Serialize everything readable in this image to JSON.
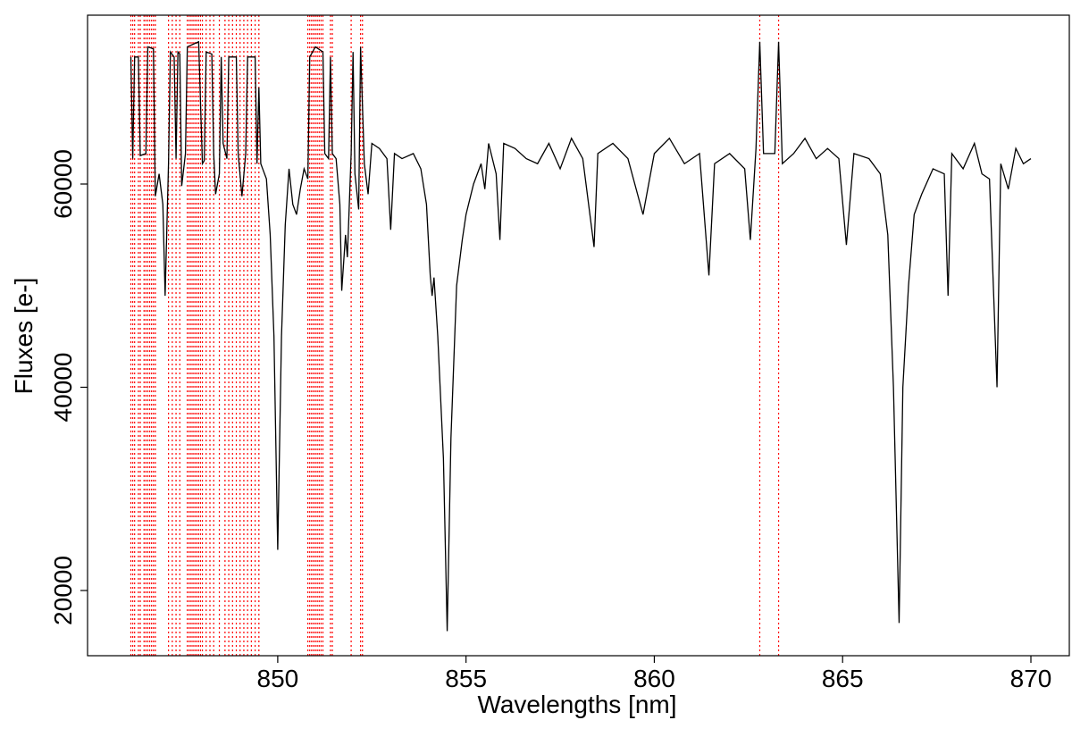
{
  "chart_data": {
    "type": "line",
    "x_label": "Wavelengths [nm]",
    "y_label": "Fluxes [e-]",
    "xlim": [
      844.95,
      871.02
    ],
    "ylim": [
      13583,
      76615
    ],
    "xticks": [
      850,
      855,
      860,
      865,
      870
    ],
    "yticks": [
      20000,
      40000,
      60000
    ],
    "color": "#000000",
    "mask_color": "#ff0000",
    "masked_wavelengths": [
      846.1,
      846.15,
      846.2,
      846.3,
      846.35,
      846.45,
      846.5,
      846.55,
      846.6,
      846.65,
      846.7,
      846.75,
      847.1,
      847.2,
      847.3,
      847.4,
      847.6,
      847.65,
      847.7,
      847.75,
      847.8,
      847.85,
      847.9,
      847.95,
      848.0,
      848.1,
      848.2,
      848.3,
      848.45,
      848.6,
      848.7,
      848.8,
      848.9,
      849.0,
      849.1,
      849.2,
      849.3,
      849.4,
      849.5,
      850.8,
      850.85,
      850.9,
      850.95,
      851.0,
      851.05,
      851.1,
      851.15,
      851.2,
      851.4,
      851.45,
      851.95,
      852.2,
      852.25,
      862.8,
      863.3
    ],
    "x": [
      846.1,
      846.15,
      846.2,
      846.3,
      846.35,
      846.5,
      846.55,
      846.7,
      846.75,
      846.85,
      846.95,
      847.01,
      847.1,
      847.15,
      847.25,
      847.3,
      847.35,
      847.4,
      847.45,
      847.55,
      847.6,
      847.9,
      848.0,
      848.05,
      848.1,
      848.25,
      848.3,
      848.35,
      848.45,
      848.5,
      848.55,
      848.65,
      848.7,
      848.9,
      848.95,
      849.05,
      849.15,
      849.2,
      849.4,
      849.45,
      849.5,
      849.55,
      849.6,
      849.7,
      849.8,
      849.9,
      850.0,
      850.1,
      850.2,
      850.3,
      850.4,
      850.5,
      850.6,
      850.7,
      850.8,
      850.85,
      851.0,
      851.2,
      851.25,
      851.35,
      851.4,
      851.45,
      851.55,
      851.65,
      851.7,
      851.8,
      851.85,
      851.95,
      852.0,
      852.05,
      852.15,
      852.2,
      852.3,
      852.4,
      852.5,
      852.7,
      852.9,
      853.0,
      853.1,
      853.3,
      853.6,
      853.8,
      853.95,
      854.05,
      854.1,
      854.15,
      854.25,
      854.4,
      854.5,
      854.6,
      854.75,
      854.9,
      855.0,
      855.2,
      855.4,
      855.5,
      855.6,
      855.8,
      855.9,
      856.0,
      856.3,
      856.6,
      856.9,
      857.2,
      857.5,
      857.8,
      858.1,
      858.4,
      858.5,
      858.9,
      859.3,
      859.7,
      860.0,
      860.4,
      860.8,
      861.2,
      861.45,
      861.6,
      862.0,
      862.4,
      862.55,
      862.7,
      862.8,
      862.9,
      863.2,
      863.3,
      863.4,
      863.7,
      864.0,
      864.3,
      864.6,
      864.9,
      865.1,
      865.3,
      865.7,
      866.0,
      866.2,
      866.35,
      866.5,
      866.6,
      866.75,
      866.9,
      867.1,
      867.4,
      867.7,
      867.8,
      867.9,
      868.2,
      868.5,
      868.7,
      868.9,
      869.1,
      869.2,
      869.4,
      869.6,
      869.8,
      870.0
    ],
    "values": [
      72500,
      62500,
      72500,
      72500,
      62800,
      63000,
      73500,
      73300,
      58800,
      61000,
      58000,
      49000,
      62000,
      73000,
      72500,
      62500,
      73000,
      72800,
      59800,
      63000,
      73500,
      74000,
      62000,
      62300,
      73000,
      72800,
      63000,
      59000,
      61000,
      72500,
      64000,
      62500,
      72500,
      72500,
      63000,
      58800,
      63000,
      72500,
      72500,
      62000,
      69500,
      62000,
      61500,
      60500,
      55000,
      45000,
      24000,
      45000,
      56000,
      61500,
      58000,
      57000,
      59500,
      61500,
      60500,
      72500,
      73500,
      73000,
      63000,
      62500,
      72500,
      63000,
      62500,
      58000,
      49500,
      55000,
      52800,
      63000,
      73000,
      61000,
      57500,
      73500,
      62000,
      59000,
      64000,
      63500,
      62500,
      55500,
      63000,
      62500,
      63000,
      61500,
      58000,
      51000,
      49000,
      50800,
      45000,
      33000,
      16000,
      35000,
      50000,
      54500,
      57000,
      60000,
      62000,
      59500,
      64000,
      61000,
      54500,
      64000,
      63500,
      62500,
      62000,
      64000,
      61500,
      64500,
      62500,
      53800,
      63000,
      64000,
      62500,
      57000,
      63000,
      64500,
      62000,
      63000,
      51000,
      62000,
      63000,
      61500,
      54500,
      63500,
      74000,
      63000,
      63000,
      74000,
      62000,
      63000,
      64500,
      62500,
      63500,
      62500,
      54000,
      63000,
      62500,
      61000,
      55000,
      40000,
      16800,
      40000,
      50000,
      57000,
      59000,
      61500,
      61000,
      49000,
      63000,
      61500,
      64000,
      61000,
      60500,
      40000,
      62000,
      59500,
      63500,
      62000,
      62500
    ]
  }
}
